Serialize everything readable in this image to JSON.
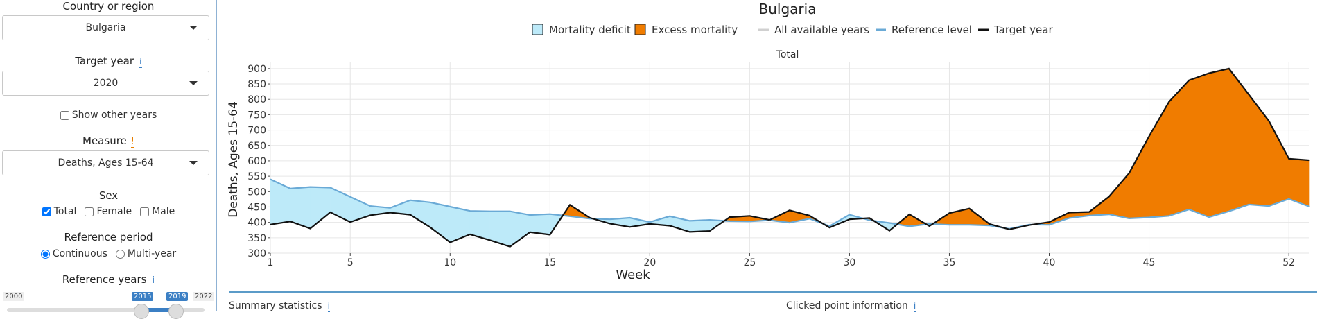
{
  "sidebar": {
    "country_label": "Country or region",
    "country_value": "Bulgaria",
    "target_year_label": "Target year",
    "target_year_value": "2020",
    "show_other_years": "Show other years",
    "measure_label": "Measure",
    "measure_value": "Deaths, Ages 15-64",
    "sex_label": "Sex",
    "sex_options": [
      "Total",
      "Female",
      "Male"
    ],
    "ref_period_label": "Reference period",
    "ref_period_options": [
      "Continuous",
      "Multi-year"
    ],
    "ref_years_label": "Reference years",
    "slider_min": "2000",
    "slider_max": "2022",
    "slider_from": "2015",
    "slider_to": "2019",
    "info_glyph": "i",
    "warn_glyph": "!"
  },
  "bottom": {
    "summary": "Summary statistics",
    "clicked": "Clicked point information"
  },
  "chart_data": {
    "type": "area",
    "title": "Bulgaria",
    "subtitle": "Total",
    "xlabel": "Week",
    "ylabel": "Deaths, Ages 15-64",
    "xlim": [
      1,
      53
    ],
    "ylim": [
      300,
      920
    ],
    "xticks": [
      1,
      5,
      10,
      15,
      20,
      25,
      30,
      35,
      40,
      45,
      52
    ],
    "yticks": [
      300,
      350,
      400,
      450,
      500,
      550,
      600,
      650,
      700,
      750,
      800,
      850,
      900
    ],
    "legend": [
      "Mortality deficit",
      "Excess mortality",
      "All available years",
      "Reference level",
      "Target year"
    ],
    "legend_position": "top-center",
    "grid": true,
    "colors": {
      "deficit": "#bdeaf9",
      "excess": "#f07c00",
      "reference": "#6aaad6",
      "target": "#111111",
      "all_years": "#d0d0d0"
    },
    "x": [
      1,
      2,
      3,
      4,
      5,
      6,
      7,
      8,
      9,
      10,
      11,
      12,
      13,
      14,
      15,
      16,
      17,
      18,
      19,
      20,
      21,
      22,
      23,
      24,
      25,
      26,
      27,
      28,
      29,
      30,
      31,
      32,
      33,
      34,
      35,
      36,
      37,
      38,
      39,
      40,
      41,
      42,
      43,
      44,
      45,
      46,
      47,
      48,
      49,
      50,
      51,
      52,
      53
    ],
    "series": [
      {
        "name": "Reference level",
        "values": [
          540,
          510,
          515,
          513,
          483,
          453,
          447,
          472,
          465,
          451,
          437,
          436,
          436,
          424,
          427,
          420,
          412,
          410,
          415,
          401,
          420,
          405,
          408,
          404,
          403,
          407,
          399,
          412,
          388,
          425,
          407,
          398,
          387,
          395,
          392,
          392,
          390,
          379,
          393,
          392,
          414,
          422,
          426,
          413,
          416,
          421,
          442,
          417,
          436,
          458,
          453,
          476,
          452
        ]
      },
      {
        "name": "Target year",
        "values": [
          393,
          403,
          380,
          433,
          401,
          423,
          432,
          425,
          384,
          335,
          361,
          342,
          321,
          368,
          360,
          457,
          415,
          396,
          385,
          395,
          389,
          369,
          372,
          417,
          421,
          408,
          439,
          422,
          383,
          410,
          414,
          373,
          426,
          388,
          430,
          445,
          395,
          377,
          391,
          401,
          432,
          434,
          484,
          560,
          680,
          792,
          862,
          885,
          900,
          815,
          730,
          607,
          602
        ]
      }
    ]
  }
}
